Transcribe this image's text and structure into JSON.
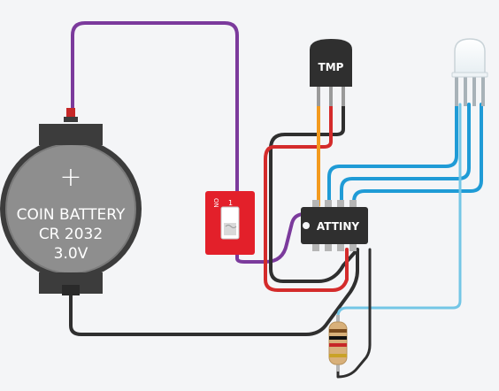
{
  "battery": {
    "line1": "COIN BATTERY",
    "line2": "CR 2032",
    "line3": "3.0V",
    "plus": "+"
  },
  "chip": {
    "label": "ATTINY"
  },
  "sensor": {
    "label": "TMP"
  },
  "switch": {
    "on_label": "ON",
    "pin_label": "1"
  },
  "colors": {
    "background": "#f4f5f7",
    "wire_purple": "#7b3a9c",
    "wire_orange": "#f39a1e",
    "wire_red": "#d42b2b",
    "wire_black": "#2f2f2f",
    "wire_blue": "#1f9bd6",
    "wire_light_blue": "#73c6e6",
    "switch_red": "#e3202a",
    "battery_fill": "#8e8e8e",
    "battery_rim": "#3c3c3c"
  }
}
